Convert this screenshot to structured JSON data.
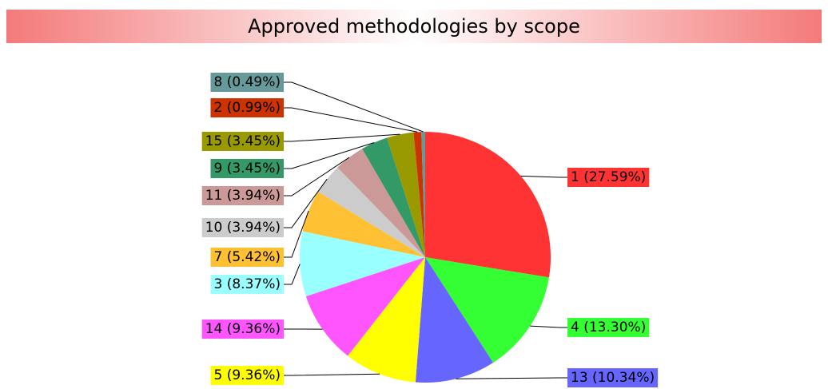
{
  "chart_data": {
    "type": "pie",
    "title": "Approved methodologies by scope",
    "categories": [
      "1",
      "4",
      "13",
      "5",
      "14",
      "3",
      "7",
      "10",
      "11",
      "9",
      "15",
      "2",
      "8"
    ],
    "values": [
      27.59,
      13.3,
      10.34,
      9.36,
      9.36,
      8.37,
      5.42,
      3.94,
      3.94,
      3.45,
      3.45,
      0.99,
      0.49
    ],
    "value_labels": [
      "1 (27.59%)",
      "4 (13.30%)",
      "13 (10.34%)",
      "5 (9.36%)",
      "14 (9.36%)",
      "3 (8.37%)",
      "7 (5.42%)",
      "10 (3.94%)",
      "11 (3.94%)",
      "9 (3.45%)",
      "15 (3.45%)",
      "2 (0.99%)",
      "8 (0.49%)"
    ],
    "colors": [
      "#ff3333",
      "#33ff33",
      "#6666ff",
      "#ffff00",
      "#ff55ff",
      "#99ffff",
      "#ffc033",
      "#cccccc",
      "#cc9999",
      "#339966",
      "#999900",
      "#cc3300",
      "#669999"
    ]
  }
}
